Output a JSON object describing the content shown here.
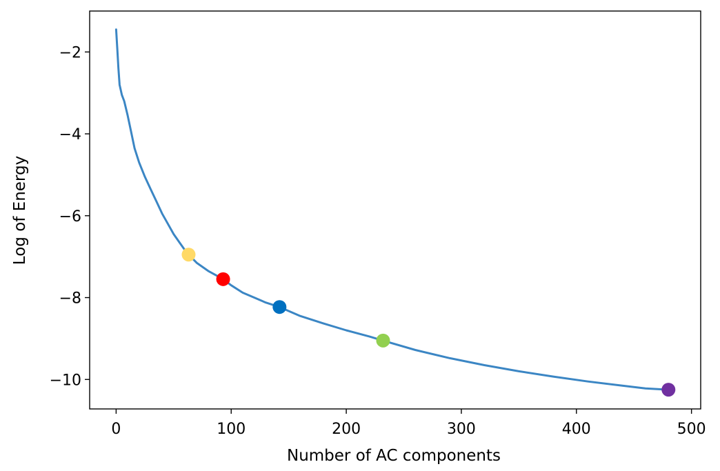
{
  "chart_data": {
    "type": "line",
    "title": "",
    "xlabel": "Number of AC components",
    "ylabel": "Log of Energy",
    "xlim": [
      -23,
      508
    ],
    "ylim": [
      -10.72,
      -1.0
    ],
    "x_ticks": [
      0,
      100,
      200,
      300,
      400,
      500
    ],
    "y_ticks": [
      -10,
      -8,
      -6,
      -4,
      -2
    ],
    "grid": false,
    "series": [
      {
        "line_color": "#3b86c4",
        "points": [
          [
            0,
            -1.45
          ],
          [
            1,
            -1.9
          ],
          [
            2,
            -2.4
          ],
          [
            3,
            -2.8
          ],
          [
            5,
            -3.05
          ],
          [
            7,
            -3.2
          ],
          [
            10,
            -3.55
          ],
          [
            13,
            -3.95
          ],
          [
            16,
            -4.35
          ],
          [
            20,
            -4.7
          ],
          [
            25,
            -5.05
          ],
          [
            30,
            -5.35
          ],
          [
            35,
            -5.65
          ],
          [
            40,
            -5.95
          ],
          [
            45,
            -6.2
          ],
          [
            50,
            -6.45
          ],
          [
            55,
            -6.65
          ],
          [
            60,
            -6.85
          ],
          [
            63,
            -6.95
          ],
          [
            70,
            -7.15
          ],
          [
            80,
            -7.35
          ],
          [
            93,
            -7.55
          ],
          [
            100,
            -7.7
          ],
          [
            110,
            -7.88
          ],
          [
            120,
            -8.0
          ],
          [
            130,
            -8.12
          ],
          [
            142,
            -8.23
          ],
          [
            160,
            -8.45
          ],
          [
            180,
            -8.63
          ],
          [
            200,
            -8.8
          ],
          [
            220,
            -8.95
          ],
          [
            232,
            -9.05
          ],
          [
            260,
            -9.28
          ],
          [
            290,
            -9.48
          ],
          [
            320,
            -9.65
          ],
          [
            350,
            -9.8
          ],
          [
            380,
            -9.93
          ],
          [
            410,
            -10.05
          ],
          [
            440,
            -10.15
          ],
          [
            460,
            -10.22
          ],
          [
            480,
            -10.25
          ]
        ]
      }
    ],
    "markers": [
      {
        "x": 63,
        "y": -6.95,
        "color": "#ffd966"
      },
      {
        "x": 93,
        "y": -7.55,
        "color": "#ff0000"
      },
      {
        "x": 142,
        "y": -8.23,
        "color": "#0070c0"
      },
      {
        "x": 232,
        "y": -9.05,
        "color": "#92d050"
      },
      {
        "x": 480,
        "y": -10.25,
        "color": "#7030a0"
      }
    ]
  }
}
